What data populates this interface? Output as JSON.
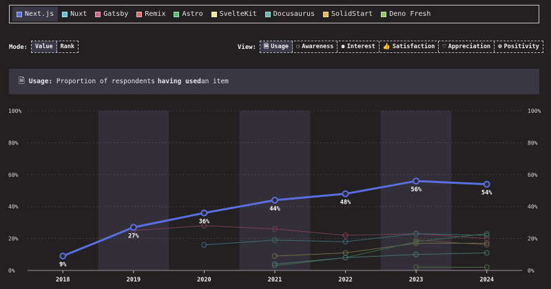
{
  "legend": [
    {
      "label": "Next.js",
      "color": "#5b6ee1",
      "active": true
    },
    {
      "label": "Nuxt",
      "color": "#5fc4d8",
      "active": false
    },
    {
      "label": "Gatsby",
      "color": "#d95f8a",
      "active": false
    },
    {
      "label": "Remix",
      "color": "#e06b6b",
      "active": false
    },
    {
      "label": "Astro",
      "color": "#4fbf73",
      "active": false
    },
    {
      "label": "SvelteKit",
      "color": "#efe8a0",
      "active": false
    },
    {
      "label": "Docusaurus",
      "color": "#5fbdb5",
      "active": false
    },
    {
      "label": "SolidStart",
      "color": "#e7b84c",
      "active": false
    },
    {
      "label": "Deno Fresh",
      "color": "#8fc86a",
      "active": false
    }
  ],
  "mode": {
    "label": "Mode:",
    "options": [
      "Value",
      "Rank"
    ],
    "selected": "Value"
  },
  "view": {
    "label": "View:",
    "options": [
      {
        "label": "Usage",
        "icon": "document-icon"
      },
      {
        "label": "Awareness",
        "icon": "ear-icon"
      },
      {
        "label": "Interest",
        "icon": "lightbulb-icon"
      },
      {
        "label": "Satisfaction",
        "icon": "thumbs-up-icon"
      },
      {
        "label": "Appreciation",
        "icon": "heart-icon"
      },
      {
        "label": "Positivity",
        "icon": "plus-circle-icon"
      }
    ],
    "selected": "Usage"
  },
  "description": {
    "prefix": "Usage:",
    "text_before": "Proportion of respondents ",
    "bold": "having used",
    "text_after": " an item"
  },
  "chart_data": {
    "type": "line",
    "x": [
      "2018",
      "2019",
      "2020",
      "2021",
      "2022",
      "2023",
      "2024"
    ],
    "ylim": [
      0,
      100
    ],
    "yticks": [
      "0%",
      "20%",
      "40%",
      "60%",
      "80%",
      "100%"
    ],
    "series": [
      {
        "name": "Next.js",
        "color": "#5b6ee1",
        "highlight": true,
        "values": [
          9,
          27,
          36,
          44,
          48,
          56,
          54
        ],
        "labels": [
          "9%",
          "27%",
          "36%",
          "44%",
          "48%",
          "56%",
          "54%"
        ]
      },
      {
        "name": "Gatsby",
        "color": "#7a4050",
        "values": [
          null,
          25,
          28,
          26,
          22,
          23,
          20
        ]
      },
      {
        "name": "Nuxt",
        "color": "#3f6a75",
        "values": [
          null,
          null,
          16,
          19,
          18,
          23,
          22
        ]
      },
      {
        "name": "Remix",
        "color": "#6a4a48",
        "values": [
          null,
          null,
          null,
          null,
          null,
          19,
          16
        ]
      },
      {
        "name": "SvelteKit",
        "color": "#6f6a4a",
        "values": [
          null,
          null,
          null,
          9,
          11,
          17,
          17
        ]
      },
      {
        "name": "Astro",
        "color": "#3f6a4e",
        "values": [
          null,
          null,
          null,
          3,
          8,
          18,
          23
        ]
      },
      {
        "name": "Docusaurus",
        "color": "#4a6f72",
        "values": [
          null,
          null,
          null,
          4,
          8,
          10,
          11
        ]
      },
      {
        "name": "Deno Fresh",
        "color": "#56684a",
        "values": [
          null,
          null,
          null,
          null,
          null,
          2,
          2
        ]
      },
      {
        "name": "SolidStart",
        "color": "#6a5e42",
        "values": [
          null,
          null,
          null,
          null,
          null,
          null,
          null
        ]
      }
    ]
  }
}
